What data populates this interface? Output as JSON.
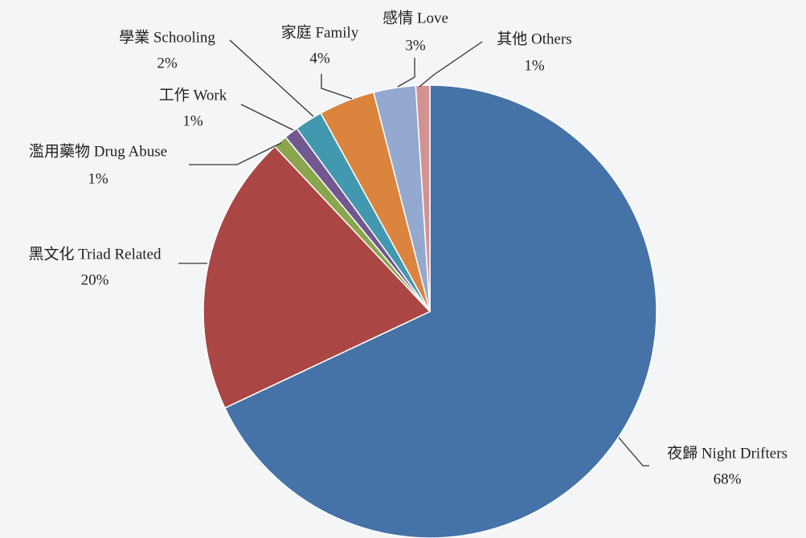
{
  "chart_data": {
    "type": "pie",
    "categories": [
      "夜歸 Night Drifters",
      "黑文化 Triad Related",
      "濫用藥物 Drug Abuse",
      "工作 Work",
      "學業 Schooling",
      "家庭 Family",
      "感情 Love",
      "其他 Others"
    ],
    "values": [
      68,
      20,
      1,
      1,
      2,
      4,
      3,
      1
    ],
    "value_labels": [
      "68%",
      "20%",
      "1%",
      "1%",
      "2%",
      "4%",
      "3%",
      "1%"
    ],
    "colors": [
      "#4572a7",
      "#aa4643",
      "#89a54e",
      "#71588f",
      "#4198af",
      "#db843d",
      "#93a9cf",
      "#d19392"
    ]
  }
}
